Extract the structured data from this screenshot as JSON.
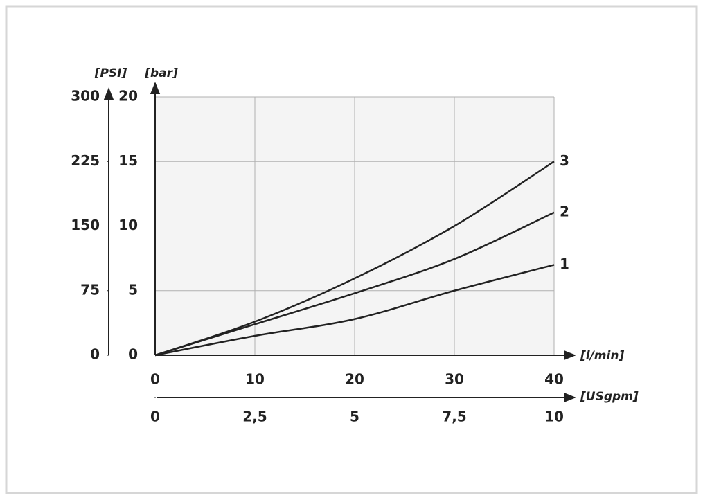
{
  "chart_data": {
    "type": "line",
    "x_label": "[l/min]",
    "y_label": "[bar]",
    "y2_label": "[PSI]",
    "x2_label": "[USgpm]",
    "x": [
      0,
      10,
      20,
      30,
      40
    ],
    "series": [
      {
        "name": "1",
        "color": "#222222",
        "values": [
          0,
          1.5,
          2.8,
          5.0,
          7.0
        ]
      },
      {
        "name": "2",
        "color": "#222222",
        "values": [
          0,
          2.4,
          4.8,
          7.45,
          11.05
        ]
      },
      {
        "name": "3",
        "color": "#222222",
        "values": [
          0,
          2.6,
          5.95,
          10.0,
          15.0
        ]
      }
    ],
    "xlim": [
      0,
      40
    ],
    "xticks": [
      0,
      10,
      20,
      30,
      40
    ],
    "ylim": [
      0,
      20
    ],
    "yticks": [
      0,
      5,
      10,
      15,
      20
    ],
    "y2lim": [
      0,
      300
    ],
    "y2ticks": [
      0,
      75,
      150,
      225,
      300
    ],
    "x2lim": [
      0,
      10
    ],
    "x2ticks": [
      0,
      {
        "value": 2.5,
        "label": "2,5"
      },
      5,
      {
        "value": 7.5,
        "label": "7,5"
      },
      10
    ],
    "grid": true
  }
}
